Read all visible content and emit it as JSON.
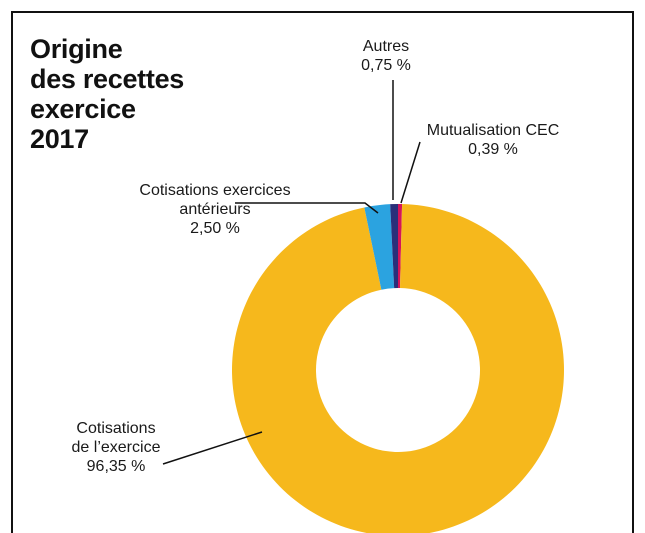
{
  "title_lines": [
    "Origine",
    "des recettes",
    "exercice",
    "2017"
  ],
  "colors": {
    "frame": "#111111",
    "cotisations_exercice": "#F6B81C",
    "cotisations_anterieurs": "#2BA3E0",
    "autres": "#2A2F7A",
    "mutualisation": "#D4145A",
    "leader": "#111111"
  },
  "chart_data": {
    "type": "pie",
    "subtype": "donut",
    "title": "Origine des recettes exercice 2017",
    "unit": "%",
    "series": [
      {
        "key": "mutualisation",
        "label_lines": [
          "Mutualisation CEC",
          "0,39 %"
        ],
        "value": 0.39
      },
      {
        "key": "cotisations_exercice",
        "label_lines": [
          "Cotisations",
          "de l’exercice",
          "96,35 %"
        ],
        "value": 96.35
      },
      {
        "key": "cotisations_anterieurs",
        "label_lines": [
          "Cotisations exercices",
          "antérieurs",
          "2,50 %"
        ],
        "value": 2.5
      },
      {
        "key": "autres",
        "label_lines": [
          "Autres",
          "0,75 %"
        ],
        "value": 0.75
      }
    ]
  }
}
